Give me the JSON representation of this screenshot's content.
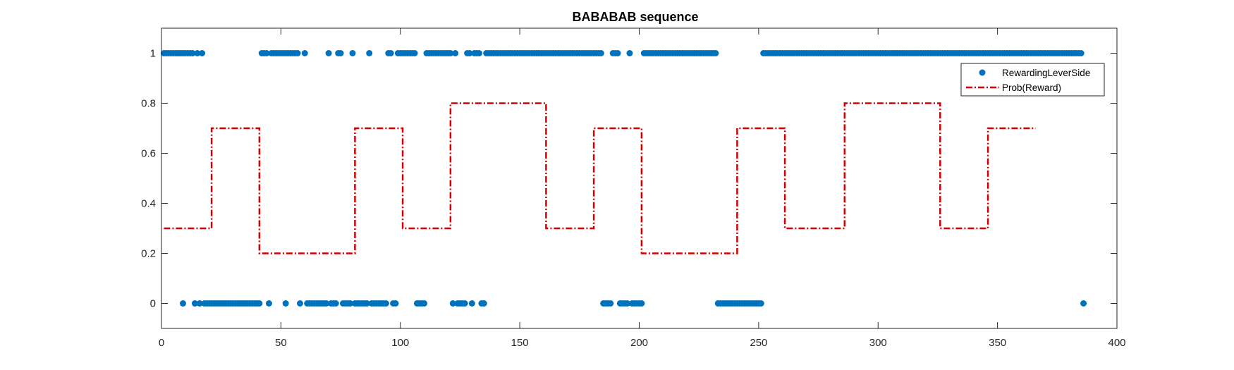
{
  "chart_data": {
    "type": "scatter",
    "title": "BABABAB sequence",
    "xlabel": "",
    "ylabel": "",
    "xlim": [
      0,
      400
    ],
    "ylim": [
      -0.1,
      1.1
    ],
    "xticks": [
      0,
      50,
      100,
      150,
      200,
      250,
      300,
      350,
      400
    ],
    "yticks": [
      0,
      0.2,
      0.4,
      0.6,
      0.8,
      1
    ],
    "grid": false,
    "legend_position": "top-right",
    "series": [
      {
        "name": "RewardingLeverSide",
        "kind": "scatter",
        "color": "#0072BD",
        "points_y1": [
          1,
          2,
          3,
          4,
          5,
          6,
          7,
          8,
          9,
          10,
          11,
          12,
          13,
          15,
          17,
          42,
          43,
          44,
          46,
          47,
          48,
          49,
          50,
          51,
          52,
          53,
          54,
          55,
          56,
          57,
          60,
          70,
          74,
          75,
          80,
          87,
          95,
          96,
          99,
          100,
          101,
          102,
          103,
          104,
          105,
          106,
          111,
          112,
          113,
          114,
          115,
          116,
          117,
          118,
          119,
          120,
          121,
          123,
          128,
          129,
          131,
          132,
          133,
          136,
          137,
          138,
          139,
          140,
          141,
          142,
          143,
          144,
          145,
          146,
          147,
          148,
          149,
          150,
          151,
          152,
          153,
          154,
          155,
          156,
          157,
          158,
          159,
          160,
          161,
          162,
          163,
          164,
          165,
          166,
          167,
          168,
          169,
          170,
          171,
          172,
          173,
          174,
          175,
          176,
          177,
          178,
          179,
          180,
          181,
          182,
          183,
          184,
          189,
          190,
          191,
          196,
          202,
          203,
          204,
          205,
          206,
          207,
          208,
          209,
          210,
          211,
          212,
          213,
          214,
          215,
          216,
          217,
          218,
          219,
          220,
          221,
          222,
          223,
          224,
          225,
          226,
          227,
          228,
          229,
          230,
          231,
          232,
          252,
          253,
          254,
          255,
          256,
          257,
          258,
          259,
          260,
          261,
          262,
          263,
          264,
          265,
          266,
          267,
          268,
          269,
          270,
          271,
          272,
          273,
          274,
          275,
          276,
          277,
          278,
          279,
          280,
          281,
          282,
          283,
          284,
          285,
          286,
          287,
          288,
          289,
          290,
          291,
          292,
          293,
          294,
          295,
          296,
          297,
          298,
          299,
          300,
          301,
          302,
          303,
          304,
          305,
          306,
          307,
          308,
          309,
          310,
          311,
          312,
          313,
          314,
          315,
          316,
          317,
          318,
          319,
          320,
          321,
          322,
          323,
          324,
          325,
          326,
          327,
          328,
          329,
          330,
          331,
          332,
          333,
          334,
          335,
          336,
          337,
          338,
          339,
          340,
          341,
          342,
          343,
          344,
          345,
          346,
          347,
          348,
          349,
          350,
          351,
          352,
          353,
          354,
          355,
          356,
          357,
          358,
          359,
          360,
          361,
          362,
          363,
          364,
          365,
          366,
          367,
          368,
          369,
          370,
          371,
          372,
          373,
          374,
          375,
          376,
          377,
          378,
          379,
          380,
          381,
          382,
          383,
          384,
          385
        ],
        "points_y0": [
          9,
          14,
          16,
          18,
          19,
          20,
          21,
          22,
          23,
          24,
          25,
          26,
          27,
          28,
          29,
          30,
          31,
          32,
          33,
          34,
          35,
          36,
          37,
          38,
          39,
          40,
          41,
          45,
          52,
          58,
          61,
          62,
          63,
          64,
          65,
          66,
          67,
          68,
          69,
          71,
          72,
          73,
          76,
          77,
          78,
          79,
          81,
          82,
          83,
          84,
          85,
          86,
          88,
          89,
          90,
          91,
          92,
          93,
          94,
          97,
          98,
          107,
          108,
          109,
          110,
          122,
          124,
          125,
          126,
          127,
          130,
          134,
          135,
          185,
          186,
          187,
          188,
          192,
          193,
          194,
          195,
          197,
          198,
          199,
          200,
          201,
          233,
          234,
          235,
          236,
          237,
          238,
          239,
          240,
          241,
          242,
          243,
          244,
          245,
          246,
          247,
          248,
          249,
          250,
          251,
          386
        ]
      },
      {
        "name": "Prob(Reward)",
        "kind": "step-line",
        "color": "#D40000",
        "dash": "dash-dot",
        "segments": [
          {
            "x_start": 1,
            "x_end": 21,
            "y": 0.3
          },
          {
            "x_start": 21,
            "x_end": 41,
            "y": 0.7
          },
          {
            "x_start": 41,
            "x_end": 81,
            "y": 0.2
          },
          {
            "x_start": 81,
            "x_end": 101,
            "y": 0.7
          },
          {
            "x_start": 101,
            "x_end": 121,
            "y": 0.3
          },
          {
            "x_start": 121,
            "x_end": 161,
            "y": 0.8
          },
          {
            "x_start": 161,
            "x_end": 181,
            "y": 0.3
          },
          {
            "x_start": 181,
            "x_end": 201,
            "y": 0.7
          },
          {
            "x_start": 201,
            "x_end": 241,
            "y": 0.2
          },
          {
            "x_start": 241,
            "x_end": 261,
            "y": 0.7
          },
          {
            "x_start": 261,
            "x_end": 286,
            "y": 0.3
          },
          {
            "x_start": 286,
            "x_end": 326,
            "y": 0.8
          },
          {
            "x_start": 326,
            "x_end": 346,
            "y": 0.3
          },
          {
            "x_start": 346,
            "x_end": 366,
            "y": 0.7
          }
        ]
      }
    ]
  }
}
